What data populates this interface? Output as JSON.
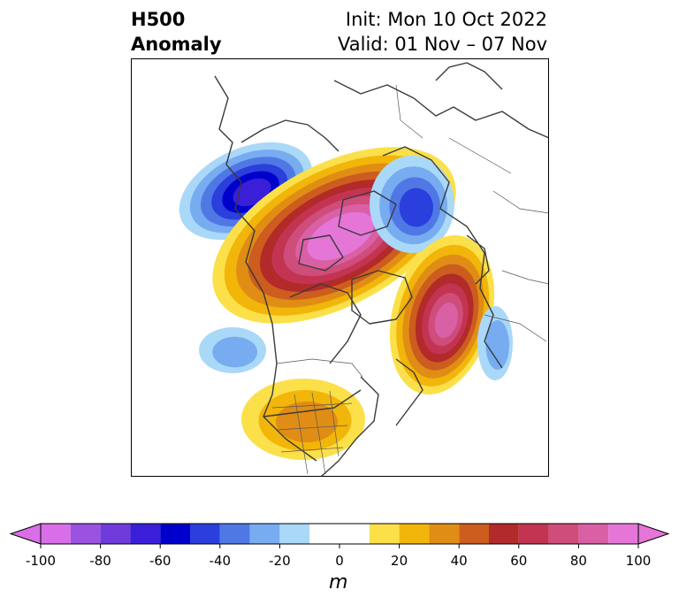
{
  "header": {
    "variable": "H500",
    "field": "Anomaly",
    "init": "Init: Mon 10 Oct 2022",
    "valid": "Valid: 01 Nov – 07 Nov"
  },
  "map": {
    "projection": "polar-stereographic",
    "region": "North America / Arctic",
    "features": [
      "coastlines",
      "country-borders",
      "us-state-borders"
    ],
    "anomaly_centers": [
      {
        "region": "Alaska / Bering Sea",
        "sign": "negative",
        "peak_m": -60
      },
      {
        "region": "Canadian Arctic Archipelago / Beaufort",
        "sign": "positive",
        "peak_m": 100
      },
      {
        "region": "Scandinavia / Barents Sea",
        "sign": "negative",
        "peak_m": -40
      },
      {
        "region": "Greenland / Iceland",
        "sign": "positive",
        "peak_m": 80
      },
      {
        "region": "North Pacific",
        "sign": "negative",
        "peak_m": -20
      },
      {
        "region": "Southwest United States",
        "sign": "positive",
        "peak_m": 30
      },
      {
        "region": "North Atlantic",
        "sign": "negative",
        "peak_m": -20
      }
    ]
  },
  "colorbar": {
    "unit": "m",
    "ticks": [
      "-100",
      "-80",
      "-60",
      "-40",
      "-20",
      "0",
      "20",
      "40",
      "60",
      "80",
      "100"
    ],
    "levels": [
      -100,
      -90,
      -80,
      -70,
      -60,
      -50,
      -40,
      -30,
      -20,
      -10,
      10,
      20,
      30,
      40,
      50,
      60,
      70,
      80,
      90,
      100
    ],
    "extend": "both",
    "colors": [
      "#d86fe6",
      "#9b52e0",
      "#6f3bdb",
      "#3a1ed8",
      "#0000cc",
      "#2a3fdb",
      "#4f78e5",
      "#77acf0",
      "#aad8f8",
      "#ffffff",
      "#fbe04a",
      "#f2b50a",
      "#e08d15",
      "#cc5d1e",
      "#b22a2a",
      "#c33452",
      "#cf4d7a",
      "#da60a6",
      "#e576d8"
    ]
  }
}
